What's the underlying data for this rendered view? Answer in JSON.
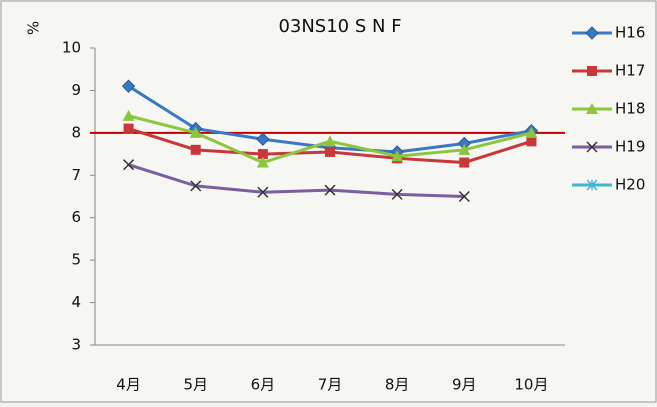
{
  "chart_data": {
    "type": "line",
    "title": "03NS10 S N F",
    "y_label": "%",
    "categories": [
      "4月",
      "5月",
      "6月",
      "7月",
      "8月",
      "9月",
      "10月"
    ],
    "series": [
      {
        "name": "H16",
        "color": "#3a78c2",
        "marker": "diamond",
        "values": [
          9.1,
          8.1,
          7.85,
          7.65,
          7.55,
          7.75,
          8.05
        ]
      },
      {
        "name": "H17",
        "color": "#c8373a",
        "marker": "square",
        "values": [
          8.1,
          7.6,
          7.5,
          7.55,
          7.4,
          7.3,
          7.8
        ]
      },
      {
        "name": "H18",
        "color": "#8cc63e",
        "marker": "triangle",
        "values": [
          8.4,
          8.0,
          7.3,
          7.8,
          7.45,
          7.6,
          8.0
        ]
      },
      {
        "name": "H19",
        "color": "#7a5fa0",
        "marker": "x",
        "values": [
          7.25,
          6.75,
          6.6,
          6.65,
          6.55,
          6.5,
          null
        ]
      },
      {
        "name": "H20",
        "color": "#3fb4d6",
        "marker": "star",
        "values": [
          null,
          null,
          null,
          null,
          null,
          null,
          null
        ]
      }
    ],
    "reference_line": {
      "value": 8,
      "color": "#c00000"
    },
    "ylim": [
      3,
      10
    ],
    "yticks": [
      3,
      4,
      5,
      6,
      7,
      8,
      9,
      10
    ],
    "grid": false,
    "legend": "right"
  }
}
